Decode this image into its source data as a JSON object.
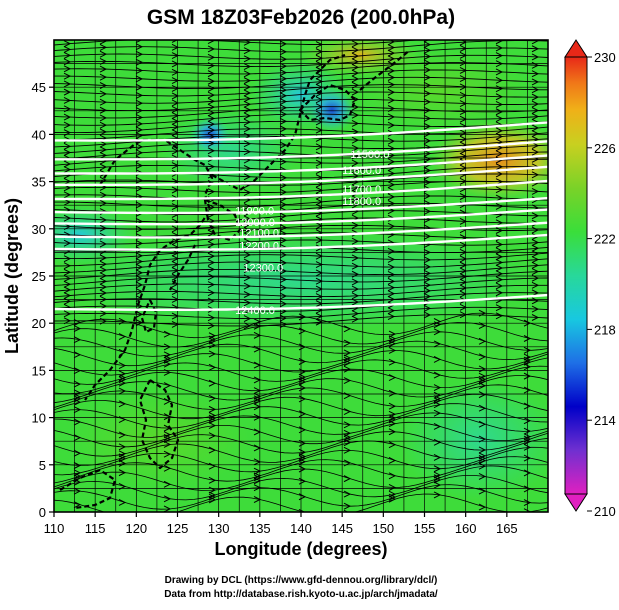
{
  "title": "GSM 18Z03Feb2026 (200.0hPa)",
  "x_axis": {
    "label": "Longitude (degrees)",
    "range": [
      110,
      170
    ],
    "ticks": [
      "110",
      "115",
      "120",
      "125",
      "130",
      "135",
      "140",
      "145",
      "150",
      "155",
      "160",
      "165"
    ]
  },
  "y_axis": {
    "label": "Latitude  (degrees)",
    "range": [
      0,
      50
    ],
    "ticks": [
      "0",
      "5",
      "10",
      "15",
      "20",
      "25",
      "30",
      "35",
      "40",
      "45"
    ]
  },
  "colorbar": {
    "range": [
      210,
      230
    ],
    "ticks": [
      "210",
      "214",
      "218",
      "222",
      "226",
      "230"
    ],
    "colors": [
      "#e020c0",
      "#7030d0",
      "#0000c8",
      "#1e6fe6",
      "#18c8e0",
      "#28d89a",
      "#3ade3a",
      "#7ad228",
      "#c8d020",
      "#f0b018",
      "#f07818",
      "#e82818"
    ]
  },
  "contours": [
    {
      "label": "11500.0",
      "lon": 146,
      "lat": 37.5
    },
    {
      "label": "11600.0",
      "lon": 145,
      "lat": 35.8
    },
    {
      "label": "11700.0",
      "lon": 145,
      "lat": 33.8
    },
    {
      "label": "11800.0",
      "lon": 145,
      "lat": 32.5
    },
    {
      "label": "11900.0",
      "lon": 132,
      "lat": 31.5
    },
    {
      "label": "12000.0",
      "lon": 132,
      "lat": 30.3
    },
    {
      "label": "12100.0",
      "lon": 132.5,
      "lat": 29.2
    },
    {
      "label": "12200.0",
      "lon": 132.5,
      "lat": 27.8
    },
    {
      "label": "12300.0",
      "lon": 133,
      "lat": 25.5
    },
    {
      "label": "12400.0",
      "lon": 132,
      "lat": 21.0
    }
  ],
  "credits": {
    "line1": "Drawing by DCL (https://www.gfd-dennou.org/library/dcl/)",
    "line2": "Data from http://database.rish.kyoto-u.ac.jp/arch/jmadata/"
  }
}
